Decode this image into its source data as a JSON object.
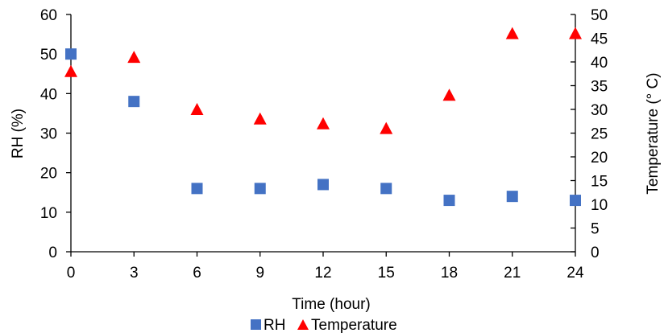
{
  "chart_data": {
    "type": "scatter",
    "x": [
      0,
      3,
      6,
      9,
      12,
      15,
      18,
      21,
      24
    ],
    "x_ticks": [
      "0",
      "3",
      "6",
      "9",
      "12",
      "15",
      "18",
      "21",
      "24"
    ],
    "xlabel": "Time (hour)",
    "xlim": [
      0,
      24
    ],
    "y_left": {
      "label": "RH (%)",
      "lim": [
        0,
        60
      ],
      "ticks": [
        "0",
        "10",
        "20",
        "30",
        "40",
        "50",
        "60"
      ]
    },
    "y_right": {
      "label": "Temperature (° C)",
      "lim": [
        0,
        50
      ],
      "ticks": [
        "0",
        "5",
        "10",
        "15",
        "20",
        "25",
        "30",
        "35",
        "40",
        "45",
        "50"
      ]
    },
    "grid": false,
    "legend_position": "bottom",
    "series": [
      {
        "name": "RH",
        "axis": "left",
        "marker": "square",
        "color": "#4472C4",
        "values": [
          50,
          38,
          16,
          16,
          17,
          16,
          13,
          14,
          13
        ]
      },
      {
        "name": "Temperature",
        "axis": "right",
        "marker": "triangle",
        "color": "#FF0000",
        "values": [
          38,
          41,
          30,
          28,
          27,
          26,
          33,
          46,
          46
        ]
      }
    ]
  }
}
